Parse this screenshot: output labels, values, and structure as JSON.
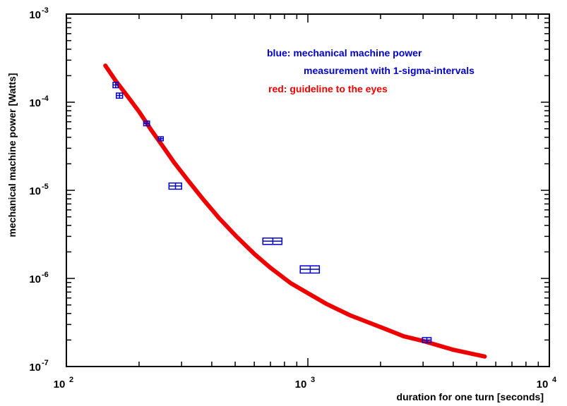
{
  "chart_data": {
    "type": "scatter",
    "xscale": "log",
    "yscale": "log",
    "xlim": [
      100,
      10000
    ],
    "ylim": [
      1e-07,
      0.001
    ],
    "xlabel": "duration for one turn [seconds]",
    "ylabel": "mechanical machine power [Watts]",
    "x_ticks": [
      {
        "value": 100,
        "base": "10",
        "exp": "2"
      },
      {
        "value": 1000,
        "base": "10",
        "exp": "3"
      },
      {
        "value": 10000,
        "base": "10",
        "exp": "4"
      }
    ],
    "y_ticks": [
      {
        "value": 0.001,
        "base": "10",
        "exp": "-3"
      },
      {
        "value": 0.0001,
        "base": "10",
        "exp": "-4"
      },
      {
        "value": 1e-05,
        "base": "10",
        "exp": "-5"
      },
      {
        "value": 1e-06,
        "base": "10",
        "exp": "-6"
      },
      {
        "value": 1e-07,
        "base": "10",
        "exp": "-7"
      }
    ],
    "legend": {
      "blue_line1": "blue: mechanical machine power",
      "blue_line2": "measurement with 1-sigma-intervals",
      "red_line": "red: guideline to the eyes"
    },
    "series": [
      {
        "name": "mechanical machine power measurement",
        "color": "#0000cc",
        "style": "error-box",
        "points": [
          {
            "x": 160,
            "y": 0.000157,
            "x_err": 4,
            "y_err": 1.1e-05
          },
          {
            "x": 166,
            "y": 0.000119,
            "x_err": 5,
            "y_err": 8e-06
          },
          {
            "x": 215,
            "y": 5.75e-05,
            "x_err": 6,
            "y_err": 3.5e-06
          },
          {
            "x": 246,
            "y": 3.85e-05,
            "x_err": 6,
            "y_err": 2e-06
          },
          {
            "x": 283,
            "y": 1.12e-05,
            "x_err": 17,
            "y_err": 9e-07
          },
          {
            "x": 716,
            "y": 2.65e-06,
            "x_err": 65,
            "y_err": 2.2e-07
          },
          {
            "x": 1023,
            "y": 1.27e-06,
            "x_err": 93,
            "y_err": 1.2e-07
          },
          {
            "x": 3110,
            "y": 2e-07,
            "x_err": 130,
            "y_err": 1.3e-08
          }
        ]
      },
      {
        "name": "guideline to the eyes",
        "color": "#ee0000",
        "style": "line",
        "points": [
          {
            "x": 145,
            "y": 0.00026
          },
          {
            "x": 160,
            "y": 0.000175
          },
          {
            "x": 180,
            "y": 0.000115
          },
          {
            "x": 200,
            "y": 7.8e-05
          },
          {
            "x": 225,
            "y": 4.8e-05
          },
          {
            "x": 250,
            "y": 3.2e-05
          },
          {
            "x": 280,
            "y": 2.05e-05
          },
          {
            "x": 320,
            "y": 1.28e-05
          },
          {
            "x": 370,
            "y": 7.8e-06
          },
          {
            "x": 430,
            "y": 4.8e-06
          },
          {
            "x": 500,
            "y": 3.1e-06
          },
          {
            "x": 600,
            "y": 1.9e-06
          },
          {
            "x": 700,
            "y": 1.32e-06
          },
          {
            "x": 850,
            "y": 8.8e-07
          },
          {
            "x": 1000,
            "y": 6.8e-07
          },
          {
            "x": 1200,
            "y": 5.1e-07
          },
          {
            "x": 1500,
            "y": 3.8e-07
          },
          {
            "x": 2000,
            "y": 2.8e-07
          },
          {
            "x": 2500,
            "y": 2.2e-07
          },
          {
            "x": 3000,
            "y": 1.95e-07
          },
          {
            "x": 4000,
            "y": 1.55e-07
          },
          {
            "x": 5400,
            "y": 1.3e-07
          }
        ]
      }
    ]
  }
}
